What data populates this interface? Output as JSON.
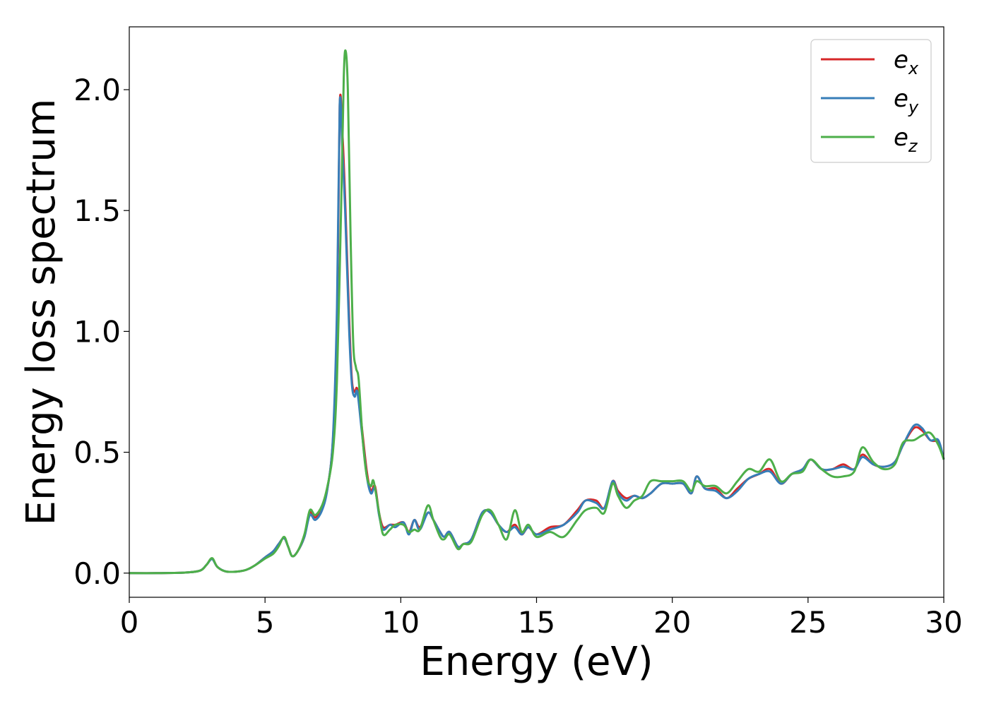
{
  "chart_data": {
    "type": "line",
    "title": "",
    "xlabel": "Energy (eV)",
    "ylabel": "Energy loss spectrum",
    "xlim": [
      0,
      30
    ],
    "ylim": [
      -0.1,
      2.26
    ],
    "xticks": [
      0,
      5,
      10,
      15,
      20,
      25,
      30
    ],
    "xtick_labels": [
      "0",
      "5",
      "10",
      "15",
      "20",
      "25",
      "30"
    ],
    "yticks": [
      0.0,
      0.5,
      1.0,
      1.5,
      2.0
    ],
    "ytick_labels": [
      "0.0",
      "0.5",
      "1.0",
      "1.5",
      "2.0"
    ],
    "grid": false,
    "legend_position": "top-right",
    "series": [
      {
        "name": "e",
        "subscript": "x",
        "color": "#d62728",
        "points": [
          [
            0,
            0
          ],
          [
            1,
            0
          ],
          [
            2,
            0.002
          ],
          [
            2.6,
            0.01
          ],
          [
            2.85,
            0.035
          ],
          [
            3.05,
            0.06
          ],
          [
            3.25,
            0.025
          ],
          [
            3.6,
            0.006
          ],
          [
            4.2,
            0.01
          ],
          [
            4.6,
            0.03
          ],
          [
            5.0,
            0.065
          ],
          [
            5.3,
            0.09
          ],
          [
            5.5,
            0.12
          ],
          [
            5.7,
            0.145
          ],
          [
            5.85,
            0.11
          ],
          [
            6.0,
            0.07
          ],
          [
            6.2,
            0.09
          ],
          [
            6.45,
            0.15
          ],
          [
            6.65,
            0.25
          ],
          [
            6.85,
            0.23
          ],
          [
            7.1,
            0.27
          ],
          [
            7.3,
            0.35
          ],
          [
            7.5,
            0.55
          ],
          [
            7.65,
            1.0
          ],
          [
            7.75,
            1.93
          ],
          [
            7.85,
            1.82
          ],
          [
            7.95,
            1.55
          ],
          [
            8.1,
            1.05
          ],
          [
            8.2,
            0.8
          ],
          [
            8.3,
            0.75
          ],
          [
            8.4,
            0.76
          ],
          [
            8.55,
            0.62
          ],
          [
            8.75,
            0.42
          ],
          [
            8.9,
            0.34
          ],
          [
            9.05,
            0.36
          ],
          [
            9.2,
            0.25
          ],
          [
            9.35,
            0.19
          ],
          [
            9.6,
            0.2
          ],
          [
            9.8,
            0.2
          ],
          [
            10.1,
            0.21
          ],
          [
            10.3,
            0.17
          ],
          [
            10.5,
            0.22
          ],
          [
            10.7,
            0.19
          ],
          [
            11.0,
            0.25
          ],
          [
            11.2,
            0.22
          ],
          [
            11.45,
            0.17
          ],
          [
            11.6,
            0.15
          ],
          [
            11.8,
            0.17
          ],
          [
            12.1,
            0.11
          ],
          [
            12.3,
            0.12
          ],
          [
            12.6,
            0.14
          ],
          [
            13.0,
            0.25
          ],
          [
            13.3,
            0.25
          ],
          [
            13.6,
            0.2
          ],
          [
            13.9,
            0.17
          ],
          [
            14.2,
            0.2
          ],
          [
            14.45,
            0.16
          ],
          [
            14.7,
            0.19
          ],
          [
            15.0,
            0.16
          ],
          [
            15.5,
            0.19
          ],
          [
            16.0,
            0.2
          ],
          [
            16.5,
            0.26
          ],
          [
            16.8,
            0.3
          ],
          [
            17.2,
            0.3
          ],
          [
            17.5,
            0.27
          ],
          [
            17.8,
            0.38
          ],
          [
            18.0,
            0.34
          ],
          [
            18.3,
            0.31
          ],
          [
            18.6,
            0.32
          ],
          [
            18.9,
            0.31
          ],
          [
            19.2,
            0.33
          ],
          [
            19.6,
            0.37
          ],
          [
            20.0,
            0.37
          ],
          [
            20.4,
            0.37
          ],
          [
            20.7,
            0.33
          ],
          [
            20.9,
            0.4
          ],
          [
            21.2,
            0.35
          ],
          [
            21.6,
            0.35
          ],
          [
            22.0,
            0.31
          ],
          [
            22.4,
            0.35
          ],
          [
            22.8,
            0.39
          ],
          [
            23.2,
            0.41
          ],
          [
            23.6,
            0.43
          ],
          [
            24.0,
            0.37
          ],
          [
            24.4,
            0.41
          ],
          [
            24.8,
            0.43
          ],
          [
            25.1,
            0.47
          ],
          [
            25.5,
            0.43
          ],
          [
            25.9,
            0.43
          ],
          [
            26.3,
            0.45
          ],
          [
            26.7,
            0.43
          ],
          [
            27.0,
            0.49
          ],
          [
            27.4,
            0.45
          ],
          [
            27.8,
            0.44
          ],
          [
            28.2,
            0.46
          ],
          [
            28.5,
            0.53
          ],
          [
            28.9,
            0.6
          ],
          [
            29.2,
            0.59
          ],
          [
            29.5,
            0.55
          ],
          [
            29.8,
            0.54
          ],
          [
            30.0,
            0.47
          ]
        ]
      },
      {
        "name": "e",
        "subscript": "y",
        "color": "#377eb8",
        "points": [
          [
            0,
            0
          ],
          [
            1,
            0
          ],
          [
            2,
            0.002
          ],
          [
            2.6,
            0.01
          ],
          [
            2.85,
            0.035
          ],
          [
            3.05,
            0.058
          ],
          [
            3.25,
            0.025
          ],
          [
            3.6,
            0.006
          ],
          [
            4.2,
            0.01
          ],
          [
            4.6,
            0.03
          ],
          [
            5.0,
            0.065
          ],
          [
            5.3,
            0.09
          ],
          [
            5.5,
            0.12
          ],
          [
            5.7,
            0.145
          ],
          [
            5.85,
            0.11
          ],
          [
            6.0,
            0.07
          ],
          [
            6.2,
            0.09
          ],
          [
            6.45,
            0.15
          ],
          [
            6.65,
            0.24
          ],
          [
            6.85,
            0.22
          ],
          [
            7.1,
            0.26
          ],
          [
            7.3,
            0.35
          ],
          [
            7.5,
            0.56
          ],
          [
            7.65,
            1.1
          ],
          [
            7.75,
            1.94
          ],
          [
            7.85,
            1.75
          ],
          [
            7.95,
            1.5
          ],
          [
            8.1,
            1.0
          ],
          [
            8.2,
            0.78
          ],
          [
            8.3,
            0.73
          ],
          [
            8.4,
            0.75
          ],
          [
            8.55,
            0.6
          ],
          [
            8.75,
            0.4
          ],
          [
            8.9,
            0.33
          ],
          [
            9.05,
            0.35
          ],
          [
            9.2,
            0.24
          ],
          [
            9.35,
            0.18
          ],
          [
            9.6,
            0.2
          ],
          [
            9.8,
            0.19
          ],
          [
            10.1,
            0.21
          ],
          [
            10.3,
            0.16
          ],
          [
            10.5,
            0.22
          ],
          [
            10.7,
            0.18
          ],
          [
            11.0,
            0.25
          ],
          [
            11.2,
            0.22
          ],
          [
            11.45,
            0.17
          ],
          [
            11.6,
            0.15
          ],
          [
            11.8,
            0.17
          ],
          [
            12.1,
            0.11
          ],
          [
            12.3,
            0.12
          ],
          [
            12.6,
            0.14
          ],
          [
            13.0,
            0.25
          ],
          [
            13.3,
            0.25
          ],
          [
            13.6,
            0.2
          ],
          [
            13.9,
            0.17
          ],
          [
            14.2,
            0.19
          ],
          [
            14.45,
            0.16
          ],
          [
            14.7,
            0.19
          ],
          [
            15.0,
            0.16
          ],
          [
            15.5,
            0.18
          ],
          [
            16.0,
            0.2
          ],
          [
            16.5,
            0.25
          ],
          [
            16.8,
            0.3
          ],
          [
            17.2,
            0.29
          ],
          [
            17.5,
            0.27
          ],
          [
            17.8,
            0.38
          ],
          [
            18.0,
            0.33
          ],
          [
            18.3,
            0.3
          ],
          [
            18.6,
            0.32
          ],
          [
            18.9,
            0.31
          ],
          [
            19.2,
            0.33
          ],
          [
            19.6,
            0.37
          ],
          [
            20.0,
            0.37
          ],
          [
            20.4,
            0.37
          ],
          [
            20.7,
            0.33
          ],
          [
            20.9,
            0.4
          ],
          [
            21.2,
            0.35
          ],
          [
            21.6,
            0.34
          ],
          [
            22.0,
            0.31
          ],
          [
            22.4,
            0.34
          ],
          [
            22.8,
            0.39
          ],
          [
            23.2,
            0.41
          ],
          [
            23.6,
            0.42
          ],
          [
            24.0,
            0.37
          ],
          [
            24.4,
            0.41
          ],
          [
            24.8,
            0.43
          ],
          [
            25.1,
            0.47
          ],
          [
            25.5,
            0.43
          ],
          [
            25.9,
            0.43
          ],
          [
            26.3,
            0.44
          ],
          [
            26.7,
            0.43
          ],
          [
            27.0,
            0.48
          ],
          [
            27.4,
            0.45
          ],
          [
            27.8,
            0.44
          ],
          [
            28.2,
            0.46
          ],
          [
            28.5,
            0.53
          ],
          [
            28.9,
            0.61
          ],
          [
            29.2,
            0.6
          ],
          [
            29.5,
            0.55
          ],
          [
            29.8,
            0.55
          ],
          [
            30.0,
            0.47
          ]
        ]
      },
      {
        "name": "e",
        "subscript": "z",
        "color": "#4daf4a",
        "points": [
          [
            0,
            0
          ],
          [
            1,
            0
          ],
          [
            2,
            0.002
          ],
          [
            2.6,
            0.01
          ],
          [
            2.85,
            0.035
          ],
          [
            3.05,
            0.062
          ],
          [
            3.25,
            0.025
          ],
          [
            3.6,
            0.006
          ],
          [
            4.2,
            0.01
          ],
          [
            4.6,
            0.03
          ],
          [
            5.0,
            0.06
          ],
          [
            5.3,
            0.08
          ],
          [
            5.5,
            0.11
          ],
          [
            5.7,
            0.15
          ],
          [
            5.85,
            0.11
          ],
          [
            6.0,
            0.07
          ],
          [
            6.2,
            0.09
          ],
          [
            6.45,
            0.16
          ],
          [
            6.65,
            0.26
          ],
          [
            6.85,
            0.24
          ],
          [
            7.1,
            0.28
          ],
          [
            7.3,
            0.36
          ],
          [
            7.5,
            0.5
          ],
          [
            7.65,
            0.8
          ],
          [
            7.8,
            1.5
          ],
          [
            7.9,
            2.05
          ],
          [
            7.97,
            2.16
          ],
          [
            8.05,
            2.0
          ],
          [
            8.15,
            1.4
          ],
          [
            8.25,
            0.95
          ],
          [
            8.35,
            0.85
          ],
          [
            8.45,
            0.8
          ],
          [
            8.6,
            0.55
          ],
          [
            8.75,
            0.4
          ],
          [
            8.9,
            0.36
          ],
          [
            9.0,
            0.38
          ],
          [
            9.2,
            0.25
          ],
          [
            9.35,
            0.16
          ],
          [
            9.6,
            0.18
          ],
          [
            9.8,
            0.2
          ],
          [
            10.1,
            0.2
          ],
          [
            10.3,
            0.17
          ],
          [
            10.5,
            0.18
          ],
          [
            10.7,
            0.18
          ],
          [
            11.0,
            0.28
          ],
          [
            11.2,
            0.22
          ],
          [
            11.45,
            0.15
          ],
          [
            11.6,
            0.14
          ],
          [
            11.8,
            0.16
          ],
          [
            12.1,
            0.1
          ],
          [
            12.3,
            0.12
          ],
          [
            12.6,
            0.13
          ],
          [
            13.0,
            0.24
          ],
          [
            13.3,
            0.26
          ],
          [
            13.6,
            0.2
          ],
          [
            13.9,
            0.14
          ],
          [
            14.2,
            0.26
          ],
          [
            14.45,
            0.17
          ],
          [
            14.7,
            0.2
          ],
          [
            15.0,
            0.15
          ],
          [
            15.5,
            0.17
          ],
          [
            16.0,
            0.15
          ],
          [
            16.5,
            0.22
          ],
          [
            16.8,
            0.26
          ],
          [
            17.2,
            0.27
          ],
          [
            17.5,
            0.25
          ],
          [
            17.8,
            0.37
          ],
          [
            18.0,
            0.32
          ],
          [
            18.3,
            0.27
          ],
          [
            18.6,
            0.3
          ],
          [
            18.9,
            0.32
          ],
          [
            19.2,
            0.38
          ],
          [
            19.6,
            0.38
          ],
          [
            20.0,
            0.38
          ],
          [
            20.4,
            0.38
          ],
          [
            20.7,
            0.34
          ],
          [
            20.9,
            0.38
          ],
          [
            21.2,
            0.36
          ],
          [
            21.6,
            0.36
          ],
          [
            22.0,
            0.33
          ],
          [
            22.4,
            0.38
          ],
          [
            22.8,
            0.43
          ],
          [
            23.2,
            0.42
          ],
          [
            23.6,
            0.47
          ],
          [
            24.0,
            0.38
          ],
          [
            24.4,
            0.41
          ],
          [
            24.8,
            0.42
          ],
          [
            25.1,
            0.47
          ],
          [
            25.5,
            0.43
          ],
          [
            25.9,
            0.4
          ],
          [
            26.3,
            0.4
          ],
          [
            26.7,
            0.42
          ],
          [
            27.0,
            0.52
          ],
          [
            27.4,
            0.46
          ],
          [
            27.8,
            0.43
          ],
          [
            28.2,
            0.45
          ],
          [
            28.5,
            0.54
          ],
          [
            28.9,
            0.55
          ],
          [
            29.2,
            0.57
          ],
          [
            29.5,
            0.58
          ],
          [
            29.8,
            0.53
          ],
          [
            30.0,
            0.47
          ]
        ]
      }
    ]
  }
}
